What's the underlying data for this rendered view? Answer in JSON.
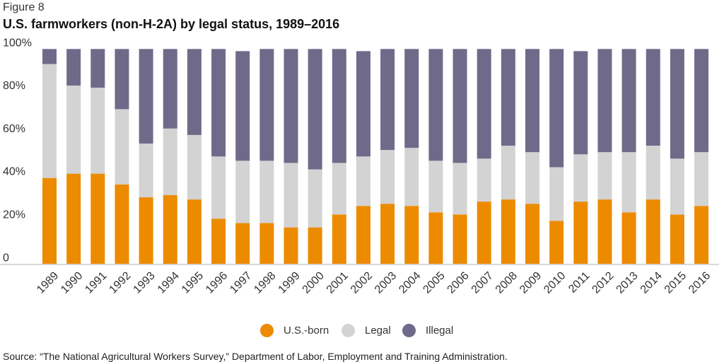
{
  "figure_label": "Figure 8",
  "source": "Source: “The National Agricultural Workers Survey,” Department of Labor, Employment and Training Administration.",
  "colors": {
    "us_born": "#EC8B00",
    "legal": "#D3D3D3",
    "illegal": "#706A8A"
  },
  "chart_data": {
    "type": "bar",
    "stacked": true,
    "title": "U.S. farmworkers (non-H-2A) by legal status, 1989–2016",
    "xlabel": "",
    "ylabel": "",
    "ylim": [
      0,
      100
    ],
    "y_ticks": [
      "0",
      "20%",
      "40%",
      "60%",
      "80%",
      "100%"
    ],
    "grid": false,
    "legend_position": "bottom",
    "categories": [
      "1989",
      "1990",
      "1991",
      "1992",
      "1993",
      "1994",
      "1995",
      "1996",
      "1997",
      "1998",
      "1999",
      "2000",
      "2001",
      "2002",
      "2003",
      "2004",
      "2005",
      "2006",
      "2007",
      "2008",
      "2009",
      "2010",
      "2011",
      "2012",
      "2013",
      "2014",
      "2015",
      "2016"
    ],
    "series": [
      {
        "name": "U.S.-born",
        "values": [
          40,
          42,
          42,
          37,
          31,
          32,
          30,
          21,
          19,
          19,
          17,
          17,
          23,
          27,
          28,
          27,
          24,
          23,
          29,
          30,
          28,
          20,
          29,
          30,
          24,
          30,
          23,
          27
        ]
      },
      {
        "name": "Legal",
        "values": [
          53,
          41,
          40,
          35,
          25,
          31,
          30,
          29,
          29,
          29,
          30,
          27,
          24,
          23,
          25,
          27,
          24,
          24,
          20,
          25,
          24,
          25,
          22,
          22,
          28,
          25,
          26,
          25
        ]
      },
      {
        "name": "Illegal",
        "values": [
          7,
          17,
          18,
          28,
          44,
          37,
          40,
          50,
          51,
          52,
          53,
          56,
          53,
          49,
          47,
          46,
          52,
          53,
          51,
          45,
          48,
          55,
          48,
          48,
          48,
          45,
          51,
          48
        ]
      }
    ]
  }
}
